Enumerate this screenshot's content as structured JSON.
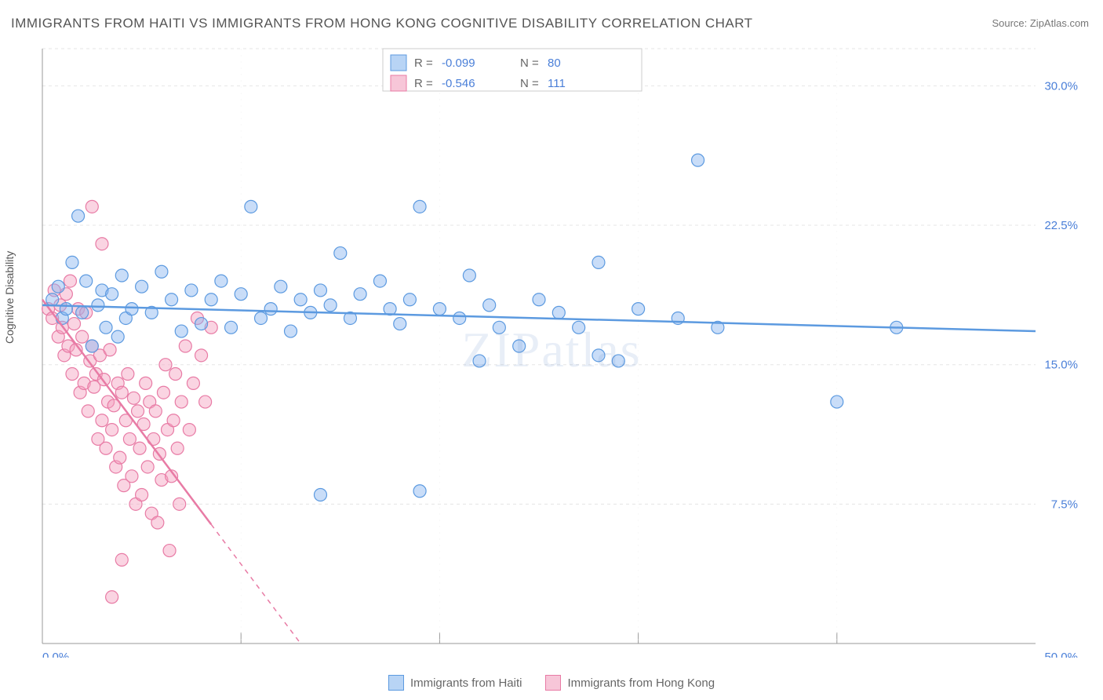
{
  "title": "IMMIGRANTS FROM HAITI VS IMMIGRANTS FROM HONG KONG COGNITIVE DISABILITY CORRELATION CHART",
  "source": "Source: ZipAtlas.com",
  "watermark": "ZIPatlas",
  "y_axis_label": "Cognitive Disability",
  "chart": {
    "type": "scatter",
    "xlim": [
      0,
      50
    ],
    "ylim": [
      0,
      32
    ],
    "background_color": "#ffffff",
    "grid_color": "#e5e5e5",
    "axis_line_color": "#999999",
    "y_ticks": [
      7.5,
      15.0,
      22.5,
      30.0
    ],
    "y_tick_labels": [
      "7.5%",
      "15.0%",
      "22.5%",
      "30.0%"
    ],
    "x_grid_positions": [
      10,
      20,
      30,
      40
    ],
    "x_min_label": "0.0%",
    "x_max_label": "50.0%",
    "marker_radius": 8,
    "marker_stroke_width": 1.2,
    "trend_line_width": 2.5
  },
  "series": {
    "haiti": {
      "label": "Immigrants from Haiti",
      "color_fill": "rgba(135,180,240,0.45)",
      "color_stroke": "#5c9ae0",
      "legend_swatch_fill": "#b8d4f5",
      "legend_swatch_border": "#5c9ae0",
      "correlation_r": "-0.099",
      "n": "80",
      "trend": {
        "x1": 0,
        "y1": 18.2,
        "x2": 50,
        "y2": 16.8,
        "dash_from_x": null
      },
      "points": [
        [
          0.5,
          18.5
        ],
        [
          0.8,
          19.2
        ],
        [
          1.0,
          17.5
        ],
        [
          1.2,
          18.0
        ],
        [
          1.5,
          20.5
        ],
        [
          1.8,
          23.0
        ],
        [
          2.0,
          17.8
        ],
        [
          2.2,
          19.5
        ],
        [
          2.5,
          16.0
        ],
        [
          2.8,
          18.2
        ],
        [
          3.0,
          19.0
        ],
        [
          3.2,
          17.0
        ],
        [
          3.5,
          18.8
        ],
        [
          3.8,
          16.5
        ],
        [
          4.0,
          19.8
        ],
        [
          4.2,
          17.5
        ],
        [
          4.5,
          18.0
        ],
        [
          5.0,
          19.2
        ],
        [
          5.5,
          17.8
        ],
        [
          6.0,
          20.0
        ],
        [
          6.5,
          18.5
        ],
        [
          7.0,
          16.8
        ],
        [
          7.5,
          19.0
        ],
        [
          8.0,
          17.2
        ],
        [
          8.5,
          18.5
        ],
        [
          9.0,
          19.5
        ],
        [
          9.5,
          17.0
        ],
        [
          10.0,
          18.8
        ],
        [
          10.5,
          23.5
        ],
        [
          11.0,
          17.5
        ],
        [
          11.5,
          18.0
        ],
        [
          12.0,
          19.2
        ],
        [
          12.5,
          16.8
        ],
        [
          13.0,
          18.5
        ],
        [
          13.5,
          17.8
        ],
        [
          14.0,
          19.0
        ],
        [
          14.0,
          8.0
        ],
        [
          14.5,
          18.2
        ],
        [
          15.0,
          21.0
        ],
        [
          15.5,
          17.5
        ],
        [
          16.0,
          18.8
        ],
        [
          17.0,
          19.5
        ],
        [
          17.5,
          18.0
        ],
        [
          18.0,
          17.2
        ],
        [
          18.5,
          18.5
        ],
        [
          19.0,
          8.2
        ],
        [
          19.0,
          23.5
        ],
        [
          20.0,
          18.0
        ],
        [
          21.0,
          17.5
        ],
        [
          21.5,
          19.8
        ],
        [
          22.0,
          15.2
        ],
        [
          22.5,
          18.2
        ],
        [
          23.0,
          17.0
        ],
        [
          24.0,
          16.0
        ],
        [
          25.0,
          18.5
        ],
        [
          26.0,
          17.8
        ],
        [
          27.0,
          17.0
        ],
        [
          28.0,
          20.5
        ],
        [
          28.0,
          15.5
        ],
        [
          29.0,
          15.2
        ],
        [
          30.0,
          18.0
        ],
        [
          32.0,
          17.5
        ],
        [
          33.0,
          26.0
        ],
        [
          34.0,
          17.0
        ],
        [
          40.0,
          13.0
        ],
        [
          43.0,
          17.0
        ]
      ]
    },
    "hongkong": {
      "label": "Immigrants from Hong Kong",
      "color_fill": "rgba(245,160,190,0.45)",
      "color_stroke": "#e87ba5",
      "legend_swatch_fill": "#f7c6d8",
      "legend_swatch_border": "#e87ba5",
      "correlation_r": "-0.546",
      "n": "111",
      "trend": {
        "x1": 0,
        "y1": 18.5,
        "x2": 13,
        "y2": 0,
        "dash_from_x": 8.5
      },
      "points": [
        [
          0.3,
          18.0
        ],
        [
          0.5,
          17.5
        ],
        [
          0.6,
          19.0
        ],
        [
          0.8,
          16.5
        ],
        [
          0.9,
          18.2
        ],
        [
          1.0,
          17.0
        ],
        [
          1.1,
          15.5
        ],
        [
          1.2,
          18.8
        ],
        [
          1.3,
          16.0
        ],
        [
          1.4,
          19.5
        ],
        [
          1.5,
          14.5
        ],
        [
          1.6,
          17.2
        ],
        [
          1.7,
          15.8
        ],
        [
          1.8,
          18.0
        ],
        [
          1.9,
          13.5
        ],
        [
          2.0,
          16.5
        ],
        [
          2.1,
          14.0
        ],
        [
          2.2,
          17.8
        ],
        [
          2.3,
          12.5
        ],
        [
          2.4,
          15.2
        ],
        [
          2.5,
          16.0
        ],
        [
          2.5,
          23.5
        ],
        [
          2.6,
          13.8
        ],
        [
          2.7,
          14.5
        ],
        [
          2.8,
          11.0
        ],
        [
          2.9,
          15.5
        ],
        [
          3.0,
          12.0
        ],
        [
          3.0,
          21.5
        ],
        [
          3.1,
          14.2
        ],
        [
          3.2,
          10.5
        ],
        [
          3.3,
          13.0
        ],
        [
          3.4,
          15.8
        ],
        [
          3.5,
          11.5
        ],
        [
          3.6,
          12.8
        ],
        [
          3.7,
          9.5
        ],
        [
          3.8,
          14.0
        ],
        [
          3.9,
          10.0
        ],
        [
          4.0,
          13.5
        ],
        [
          4.1,
          8.5
        ],
        [
          4.2,
          12.0
        ],
        [
          4.3,
          14.5
        ],
        [
          4.4,
          11.0
        ],
        [
          4.5,
          9.0
        ],
        [
          4.6,
          13.2
        ],
        [
          4.7,
          7.5
        ],
        [
          4.8,
          12.5
        ],
        [
          4.9,
          10.5
        ],
        [
          5.0,
          8.0
        ],
        [
          5.1,
          11.8
        ],
        [
          5.2,
          14.0
        ],
        [
          5.3,
          9.5
        ],
        [
          5.4,
          13.0
        ],
        [
          5.5,
          7.0
        ],
        [
          5.6,
          11.0
        ],
        [
          5.7,
          12.5
        ],
        [
          5.8,
          6.5
        ],
        [
          5.9,
          10.2
        ],
        [
          6.0,
          8.8
        ],
        [
          6.1,
          13.5
        ],
        [
          6.2,
          15.0
        ],
        [
          6.3,
          11.5
        ],
        [
          6.4,
          5.0
        ],
        [
          6.5,
          9.0
        ],
        [
          6.6,
          12.0
        ],
        [
          6.7,
          14.5
        ],
        [
          6.8,
          10.5
        ],
        [
          6.9,
          7.5
        ],
        [
          7.0,
          13.0
        ],
        [
          7.2,
          16.0
        ],
        [
          7.4,
          11.5
        ],
        [
          7.6,
          14.0
        ],
        [
          7.8,
          17.5
        ],
        [
          8.0,
          15.5
        ],
        [
          8.2,
          13.0
        ],
        [
          8.5,
          17.0
        ],
        [
          3.5,
          2.5
        ],
        [
          4.0,
          4.5
        ]
      ]
    }
  },
  "top_legend": {
    "r_label": "R =",
    "n_label": "N ="
  }
}
